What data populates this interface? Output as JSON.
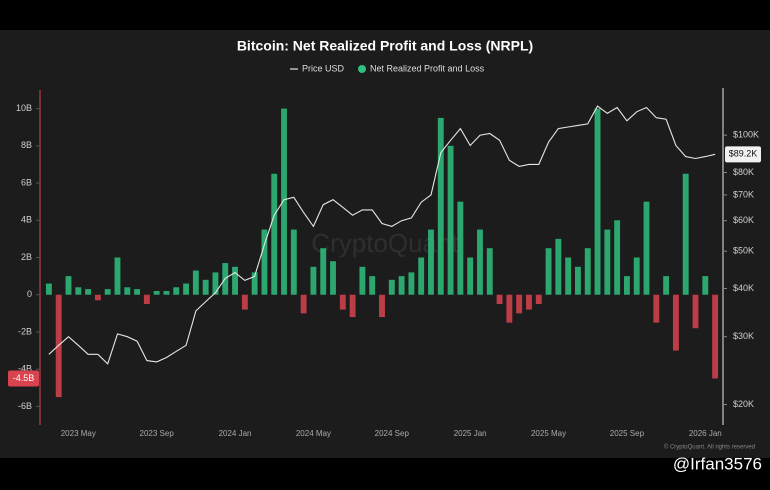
{
  "chart_data": {
    "type": "bar",
    "title": "Bitcoin: Net Realized Profit and Loss (NRPL)",
    "watermark": "CryptoQuant",
    "copyright": "© CryptoQuant. All rights reserved",
    "credit": "@Irfan3576",
    "categories": [
      null,
      null,
      null,
      "2023 May",
      null,
      null,
      null,
      null,
      null,
      null,
      null,
      "2023 Sep",
      null,
      null,
      null,
      null,
      null,
      null,
      null,
      "2024 Jan",
      null,
      null,
      null,
      null,
      null,
      null,
      null,
      "2024 May",
      null,
      null,
      null,
      null,
      null,
      null,
      null,
      "2024 Sep",
      null,
      null,
      null,
      null,
      null,
      null,
      null,
      "2025 Jan",
      null,
      null,
      null,
      null,
      null,
      null,
      null,
      "2025 May",
      null,
      null,
      null,
      null,
      null,
      null,
      null,
      "2025 Sep",
      null,
      null,
      null,
      null,
      null,
      null,
      null,
      "2026 Jan",
      null
    ],
    "series": [
      {
        "name": "Price USD",
        "type": "line",
        "axis": "y2",
        "color": "#e6e6e6",
        "current_value": {
          "value": 89200,
          "label": "$89.2K"
        },
        "values": [
          27000,
          28500,
          30000,
          28500,
          27000,
          27000,
          25500,
          30500,
          30000,
          29200,
          26000,
          25800,
          26500,
          27500,
          28500,
          35000,
          37000,
          39000,
          42500,
          44000,
          42000,
          43000,
          52000,
          62000,
          68000,
          69000,
          63000,
          58000,
          66000,
          68000,
          65000,
          62000,
          64000,
          64000,
          59000,
          58000,
          60000,
          61000,
          67000,
          70000,
          90000,
          97000,
          104000,
          94000,
          100000,
          101000,
          97000,
          86000,
          83000,
          84000,
          84000,
          96000,
          104000,
          105000,
          106000,
          107000,
          119000,
          114000,
          118000,
          109000,
          115000,
          118000,
          111000,
          110000,
          94000,
          88000,
          87000,
          88000,
          89200
        ]
      },
      {
        "name": "Net Realized Profit and Loss",
        "type": "bar",
        "color": "#2fbf7f",
        "negative_color": "#d9434f",
        "current_value": {
          "value": -4.5,
          "label": "-4.5B"
        },
        "values": [
          0.6,
          -5.5,
          1.0,
          0.4,
          0.3,
          -0.3,
          0.3,
          2.0,
          0.4,
          0.3,
          -0.5,
          0.2,
          0.2,
          0.4,
          0.6,
          1.3,
          0.8,
          1.2,
          1.7,
          1.5,
          -0.8,
          1.2,
          3.5,
          6.5,
          10.0,
          3.5,
          -1.0,
          1.5,
          2.5,
          1.8,
          -0.8,
          -1.2,
          1.5,
          1.0,
          -1.2,
          0.8,
          1.0,
          1.2,
          2.0,
          3.5,
          9.5,
          8.0,
          5.0,
          2.0,
          3.5,
          2.5,
          -0.5,
          -1.5,
          -1.0,
          -0.8,
          -0.5,
          2.5,
          3.0,
          2.0,
          1.5,
          2.5,
          10.0,
          3.5,
          4.0,
          1.0,
          2.0,
          5.0,
          -1.5,
          1.0,
          -3.0,
          6.5,
          -1.8,
          1.0,
          -4.5
        ]
      }
    ],
    "ylim": [
      -7,
      11
    ],
    "yticks": [
      {
        "value": 10,
        "label": "10B"
      },
      {
        "value": 8,
        "label": "8B"
      },
      {
        "value": 6,
        "label": "6B"
      },
      {
        "value": 4,
        "label": "4B"
      },
      {
        "value": 2,
        "label": "2B"
      },
      0,
      {
        "value": -2,
        "label": "-2B"
      },
      {
        "value": -4,
        "label": "-4B"
      },
      {
        "value": -6,
        "label": "-6B"
      }
    ],
    "y2lim": [
      17700,
      131000
    ],
    "y2scale": "log",
    "y2ticks": [
      {
        "value": 100000,
        "label": "$100K"
      },
      {
        "value": 80000,
        "label": "$80K"
      },
      {
        "value": 70000,
        "label": "$70K"
      },
      {
        "value": 60000,
        "label": "$60K"
      },
      {
        "value": 50000,
        "label": "$50K"
      },
      {
        "value": 40000,
        "label": "$40K"
      },
      {
        "value": 30000,
        "label": "$30K"
      },
      {
        "value": 20000,
        "label": "$20K"
      }
    ],
    "grid": false
  }
}
